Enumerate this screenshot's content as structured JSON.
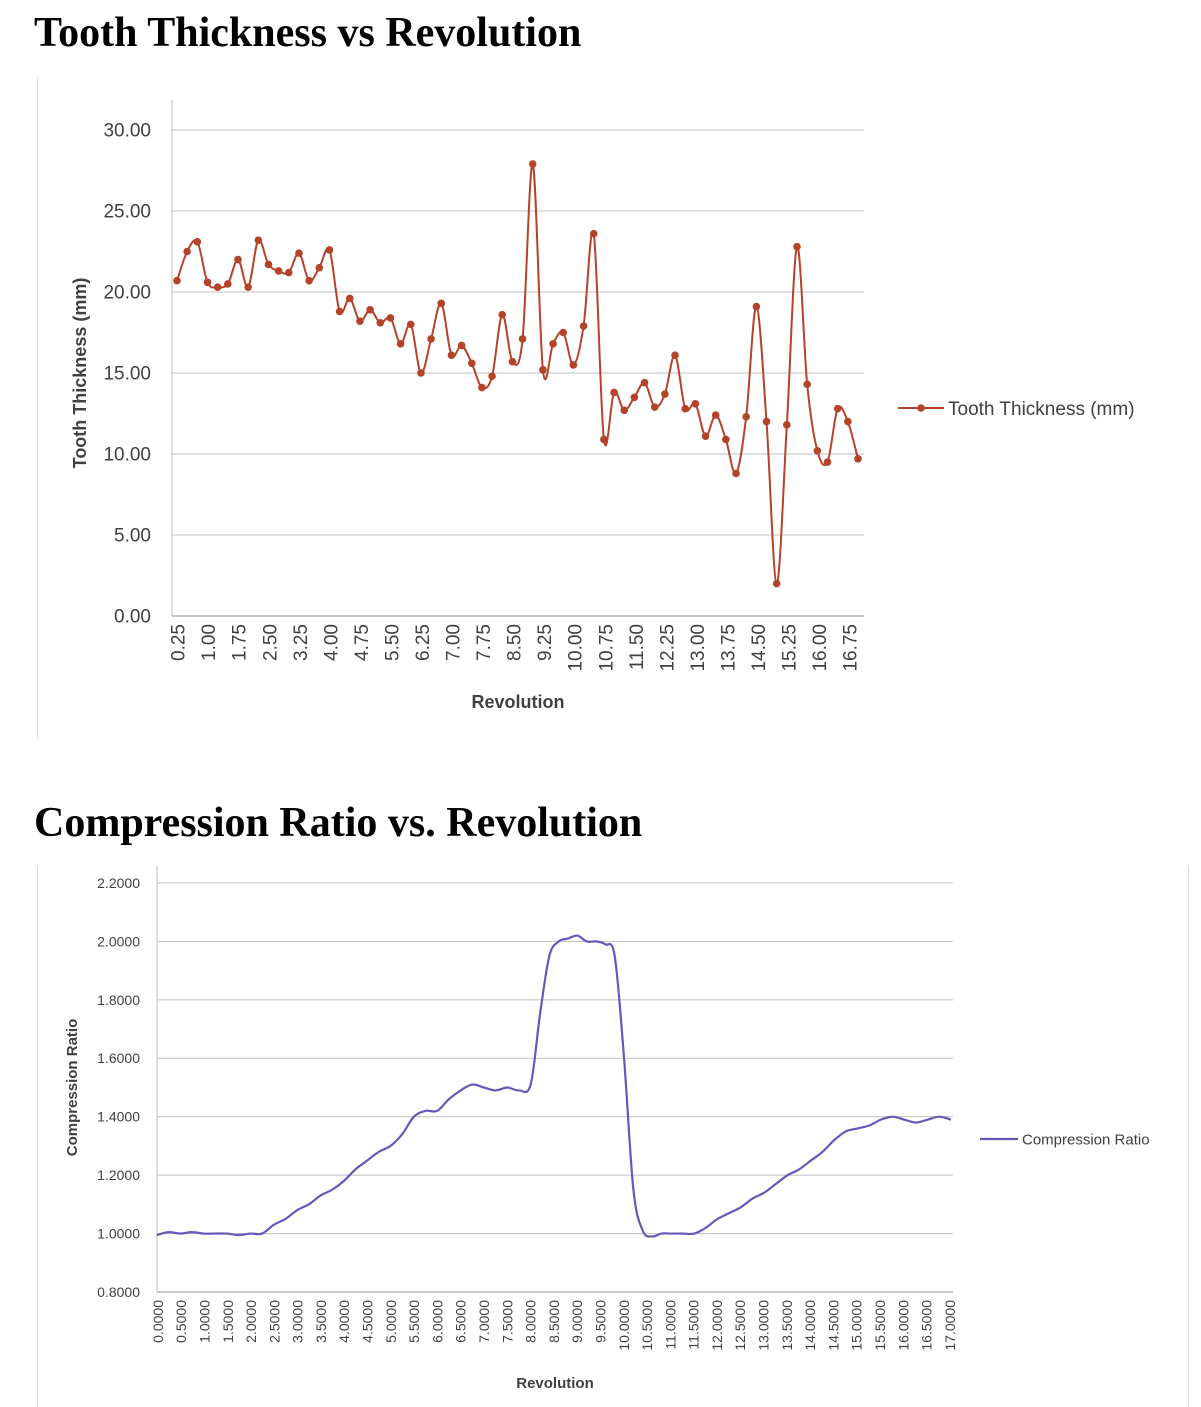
{
  "chart_data": [
    {
      "type": "line",
      "title": "Tooth Thickness vs Revolution",
      "xlabel": "Revolution",
      "ylabel": "Tooth Thickness (mm)",
      "ylim": [
        0,
        30
      ],
      "y_ticks": [
        "0.00",
        "5.00",
        "10.00",
        "15.00",
        "20.00",
        "25.00",
        "30.00"
      ],
      "x_ticks": [
        "0.25",
        "1.00",
        "1.75",
        "2.50",
        "3.25",
        "4.00",
        "4.75",
        "5.50",
        "6.25",
        "7.00",
        "7.75",
        "8.50",
        "9.25",
        "10.00",
        "10.75",
        "11.50",
        "12.25",
        "13.00",
        "13.75",
        "14.50",
        "15.25",
        "16.00",
        "16.75"
      ],
      "grid": true,
      "legend": "right",
      "color": "#b5432a",
      "markers": true,
      "x": [
        0.25,
        0.5,
        0.75,
        1.0,
        1.25,
        1.5,
        1.75,
        2.0,
        2.25,
        2.5,
        2.75,
        3.0,
        3.25,
        3.5,
        3.75,
        4.0,
        4.25,
        4.5,
        4.75,
        5.0,
        5.25,
        5.5,
        5.75,
        6.0,
        6.25,
        6.5,
        6.75,
        7.0,
        7.25,
        7.5,
        7.75,
        8.0,
        8.25,
        8.5,
        8.75,
        9.0,
        9.25,
        9.5,
        9.75,
        10.0,
        10.25,
        10.5,
        10.75,
        11.0,
        11.25,
        11.5,
        11.75,
        12.0,
        12.25,
        12.5,
        12.75,
        13.0,
        13.25,
        13.5,
        13.75,
        14.0,
        14.25,
        14.5,
        14.75,
        15.0,
        15.25,
        15.5,
        15.75,
        16.0,
        16.25,
        16.5,
        16.75,
        17.0
      ],
      "series": [
        {
          "name": "Tooth Thickness (mm)",
          "values": [
            20.7,
            22.5,
            23.1,
            20.6,
            20.3,
            20.5,
            22.0,
            20.3,
            23.2,
            21.7,
            21.3,
            21.2,
            22.4,
            20.7,
            21.5,
            22.6,
            18.8,
            19.6,
            18.2,
            18.9,
            18.1,
            18.4,
            16.8,
            18.0,
            15.0,
            17.1,
            19.3,
            16.1,
            16.7,
            15.6,
            14.1,
            14.8,
            18.6,
            15.7,
            17.1,
            27.9,
            15.2,
            16.8,
            17.5,
            15.5,
            17.9,
            23.6,
            10.9,
            13.8,
            12.7,
            13.5,
            14.4,
            12.9,
            13.7,
            16.1,
            12.8,
            13.1,
            11.1,
            12.4,
            10.9,
            8.8,
            12.3,
            19.1,
            12.0,
            2.0,
            11.8,
            22.8,
            14.3,
            10.2,
            9.5,
            12.8,
            12.0,
            9.7
          ]
        }
      ]
    },
    {
      "type": "line",
      "title": "Compression Ratio vs. Revolution",
      "xlabel": "Revolution",
      "ylabel": "Compression Ratio",
      "ylim": [
        0.8,
        2.2
      ],
      "y_ticks": [
        "0.8000",
        "1.0000",
        "1.2000",
        "1.4000",
        "1.6000",
        "1.8000",
        "2.0000",
        "2.2000"
      ],
      "xlim": [
        0,
        17
      ],
      "x_ticks": [
        "0.0000",
        "0.5000",
        "1.0000",
        "1.5000",
        "2.0000",
        "2.5000",
        "3.0000",
        "3.5000",
        "4.0000",
        "4.5000",
        "5.0000",
        "5.5000",
        "6.0000",
        "6.5000",
        "7.0000",
        "7.5000",
        "8.0000",
        "8.5000",
        "9.0000",
        "9.5000",
        "10.0000",
        "10.5000",
        "11.0000",
        "11.5000",
        "12.0000",
        "12.5000",
        "13.0000",
        "13.5000",
        "14.0000",
        "14.5000",
        "15.0000",
        "15.5000",
        "16.0000",
        "16.5000",
        "17.0000"
      ],
      "grid": true,
      "legend": "right",
      "color": "#6a55b8",
      "markers": false,
      "x": [
        0.0,
        0.25,
        0.5,
        0.75,
        1.0,
        1.25,
        1.5,
        1.75,
        2.0,
        2.25,
        2.5,
        2.75,
        3.0,
        3.25,
        3.5,
        3.75,
        4.0,
        4.25,
        4.5,
        4.75,
        5.0,
        5.25,
        5.5,
        5.75,
        6.0,
        6.25,
        6.5,
        6.75,
        7.0,
        7.25,
        7.5,
        7.75,
        8.0,
        8.2,
        8.4,
        8.6,
        8.8,
        9.0,
        9.2,
        9.4,
        9.6,
        9.8,
        10.0,
        10.2,
        10.4,
        10.6,
        10.8,
        11.0,
        11.25,
        11.5,
        11.75,
        12.0,
        12.25,
        12.5,
        12.75,
        13.0,
        13.25,
        13.5,
        13.75,
        14.0,
        14.25,
        14.5,
        14.75,
        15.0,
        15.25,
        15.5,
        15.75,
        16.0,
        16.25,
        16.5,
        16.75,
        17.0
      ],
      "series": [
        {
          "name": "Compression Ratio",
          "values": [
            0.995,
            1.005,
            1.0,
            1.005,
            1.0,
            1.0,
            1.0,
            0.995,
            1.0,
            1.0,
            1.03,
            1.05,
            1.08,
            1.1,
            1.13,
            1.15,
            1.18,
            1.22,
            1.25,
            1.28,
            1.3,
            1.34,
            1.4,
            1.42,
            1.42,
            1.46,
            1.49,
            1.51,
            1.5,
            1.49,
            1.5,
            1.49,
            1.51,
            1.75,
            1.95,
            2.0,
            2.01,
            2.02,
            2.0,
            2.0,
            1.99,
            1.95,
            1.6,
            1.15,
            1.01,
            0.99,
            1.0,
            1.0,
            1.0,
            1.0,
            1.02,
            1.05,
            1.07,
            1.09,
            1.12,
            1.14,
            1.17,
            1.2,
            1.22,
            1.25,
            1.28,
            1.32,
            1.35,
            1.36,
            1.37,
            1.39,
            1.4,
            1.39,
            1.38,
            1.39,
            1.4,
            1.39
          ]
        }
      ]
    }
  ]
}
